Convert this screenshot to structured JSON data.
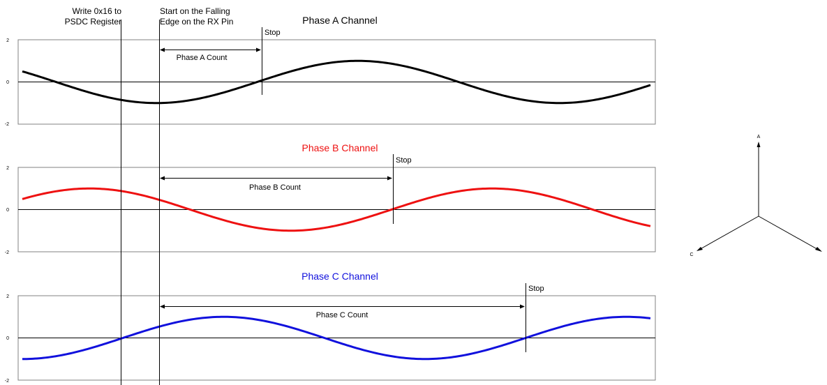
{
  "annotations": {
    "write_label_line1": "Write 0x16 to",
    "write_label_line2": "PSDC Register",
    "start_label_line1": "Start on the Falling",
    "start_label_line2": "Edge on the RX Pin"
  },
  "phasor": {
    "label_a": "A",
    "label_c": "C"
  },
  "colors": {
    "phase_a": "#000000",
    "phase_b": "#ee1111",
    "phase_c": "#1111dd"
  },
  "chart_data": [
    {
      "type": "line",
      "title": "Phase A Channel",
      "ylim": [
        -2,
        2
      ],
      "yticks": [
        "2",
        "0",
        "-2"
      ],
      "phase_deg": 150,
      "count_label": "Phase A Count",
      "stop_label": "Stop",
      "series": [
        {
          "color": "#000000",
          "amplitude": 1
        }
      ]
    },
    {
      "type": "line",
      "title": "Phase B Channel",
      "ylim": [
        -2,
        2
      ],
      "yticks": [
        "2",
        "0",
        "-2"
      ],
      "phase_deg": 30,
      "count_label": "Phase B Count",
      "stop_label": "Stop",
      "series": [
        {
          "color": "#ee1111",
          "amplitude": 1
        }
      ]
    },
    {
      "type": "line",
      "title": "Phase C Channel",
      "ylim": [
        -2,
        2
      ],
      "yticks": [
        "2",
        "0",
        "-2"
      ],
      "phase_deg": 270,
      "count_label": "Phase C Count",
      "stop_label": "Stop",
      "series": [
        {
          "color": "#1111dd",
          "amplitude": 1
        }
      ]
    }
  ]
}
